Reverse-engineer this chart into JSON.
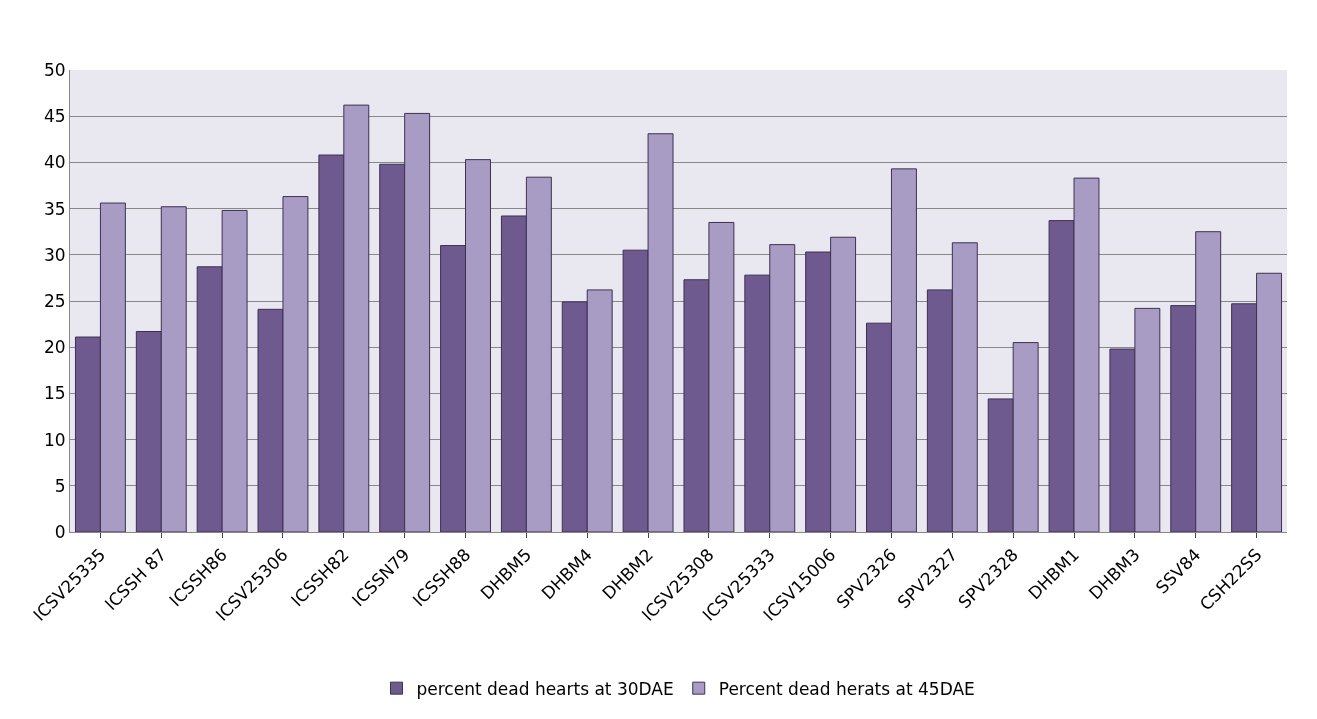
{
  "chart_data": {
    "type": "bar",
    "categories": [
      "ICSV25335",
      "ICSSH 87",
      "ICSSH86",
      "ICSV25306",
      "ICSSH82",
      "ICSSN79",
      "ICSSH88",
      "DHBM5",
      "DHBM4",
      "DHBM2",
      "ICSV25308",
      "ICSV25333",
      "ICSV15006",
      "SPV2326",
      "SPV2327",
      "SPV2328",
      "DHBM1",
      "DHBM3",
      "SSV84",
      "CSH22SS"
    ],
    "series": [
      {
        "name": "percent dead hearts at 30DAE",
        "color": "#6e5a8e",
        "values": [
          21.1,
          21.7,
          28.7,
          24.1,
          40.8,
          39.8,
          31.0,
          34.2,
          24.9,
          30.5,
          27.3,
          27.8,
          30.3,
          22.6,
          26.2,
          14.4,
          33.7,
          19.8,
          24.5,
          24.7
        ]
      },
      {
        "name": "Percent dead herats at 45DAE",
        "color": "#a99cc4",
        "values": [
          35.6,
          35.2,
          34.8,
          36.3,
          46.2,
          45.3,
          40.3,
          38.4,
          26.2,
          43.1,
          33.5,
          31.1,
          31.9,
          39.3,
          31.3,
          20.5,
          38.3,
          24.2,
          32.5,
          28.0
        ]
      }
    ],
    "ylim": [
      0,
      50
    ],
    "yticks": [
      0,
      5,
      10,
      15,
      20,
      25,
      30,
      35,
      40,
      45,
      50
    ],
    "grid": "y",
    "legend": "bottom"
  }
}
